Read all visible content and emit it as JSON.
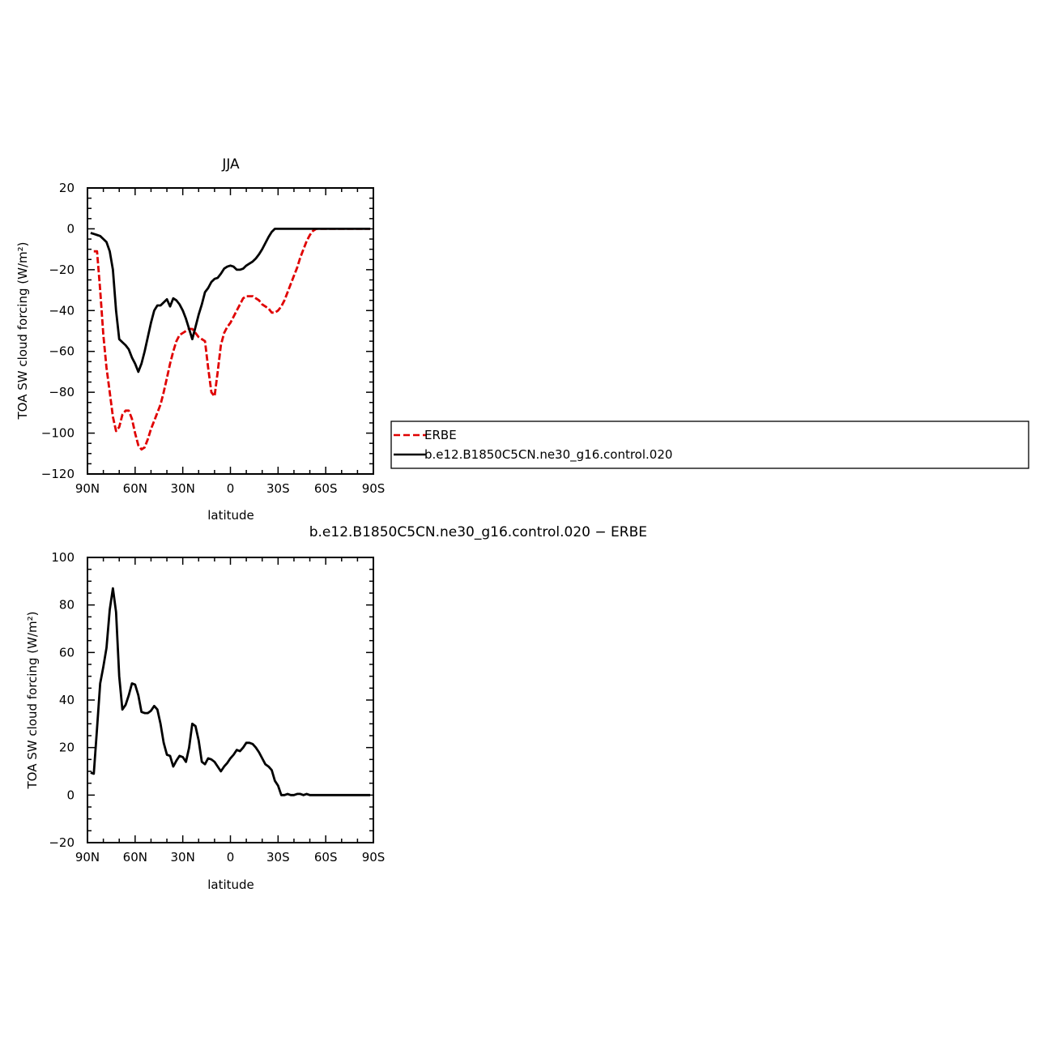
{
  "chart_data": [
    {
      "type": "line",
      "title": "JJA",
      "xlabel": "latitude",
      "ylabel": "TOA SW cloud forcing (W/m²)",
      "x_tick_labels": [
        "90N",
        "60N",
        "30N",
        "0",
        "30S",
        "60S",
        "90S"
      ],
      "x_ticks": [
        90,
        60,
        30,
        0,
        -30,
        -60,
        -90
      ],
      "xlim": [
        90,
        -90
      ],
      "ylim": [
        -120,
        20
      ],
      "y_ticks": [
        -120,
        -100,
        -80,
        -60,
        -40,
        -20,
        0,
        20
      ],
      "legend": {
        "placement": "right",
        "entries": [
          "ERBE",
          "b.e12.B1850C5CN.ne30_g16.control.020"
        ]
      },
      "series": [
        {
          "name": "ERBE",
          "color": "#e00000",
          "dash": true,
          "x": [
            86,
            84,
            82,
            80,
            78,
            76,
            74,
            72,
            70,
            68,
            66,
            64,
            62,
            60,
            58,
            56,
            54,
            52,
            50,
            48,
            46,
            44,
            42,
            40,
            38,
            36,
            34,
            32,
            30,
            28,
            26,
            24,
            22,
            20,
            18,
            16,
            14,
            12,
            10,
            8,
            6,
            4,
            2,
            0,
            -2,
            -4,
            -6,
            -8,
            -10,
            -12,
            -14,
            -16,
            -18,
            -20,
            -22,
            -24,
            -26,
            -28,
            -30,
            -32,
            -34,
            -36,
            -38,
            -40,
            -42,
            -44,
            -46,
            -48,
            -50,
            -52,
            -54,
            -56,
            -58,
            -60,
            -62,
            -64,
            -66,
            -68,
            -70,
            -72,
            -74,
            -76,
            -78,
            -80,
            -82,
            -84,
            -86,
            -88
          ],
          "y": [
            -11,
            -11,
            -30,
            -52,
            -68,
            -80,
            -92,
            -99,
            -97,
            -91,
            -89,
            -89,
            -93,
            -100,
            -106,
            -108,
            -107,
            -103,
            -98,
            -94,
            -90,
            -86,
            -80,
            -73,
            -66,
            -60,
            -55,
            -52,
            -51,
            -50,
            -49,
            -49,
            -51,
            -53,
            -54,
            -55,
            -68,
            -80,
            -82,
            -70,
            -57,
            -51,
            -48,
            -46,
            -43,
            -40,
            -37,
            -34,
            -33,
            -33,
            -33,
            -34,
            -35,
            -37,
            -38,
            -39,
            -41,
            -41,
            -40,
            -38,
            -35,
            -31,
            -27,
            -23,
            -19,
            -14,
            -10,
            -6,
            -3,
            -1,
            0,
            0,
            0,
            0,
            0,
            0,
            0,
            0,
            0,
            0,
            0,
            0,
            0,
            0,
            0,
            0,
            0,
            0
          ]
        },
        {
          "name": "b.e12.B1850C5CN.ne30_g16.control.020",
          "color": "#000000",
          "dash": false,
          "x": [
            88,
            86,
            84,
            82,
            80,
            78,
            76,
            74,
            72,
            70,
            68,
            66,
            64,
            62,
            60,
            58,
            56,
            54,
            52,
            50,
            48,
            46,
            44,
            42,
            40,
            38,
            36,
            34,
            32,
            30,
            28,
            26,
            24,
            22,
            20,
            18,
            16,
            14,
            12,
            10,
            8,
            6,
            4,
            2,
            0,
            -2,
            -4,
            -6,
            -8,
            -10,
            -12,
            -14,
            -16,
            -18,
            -20,
            -22,
            -24,
            -26,
            -28,
            -30,
            -32,
            -34,
            -36,
            -38,
            -40,
            -42,
            -44,
            -46,
            -48,
            -50,
            -52,
            -54,
            -56,
            -58,
            -60,
            -62,
            -64,
            -66,
            -68,
            -70,
            -72,
            -74,
            -76,
            -78,
            -80,
            -82,
            -84,
            -86,
            -88
          ],
          "y": [
            -2,
            -2.5,
            -3,
            -3.5,
            -5,
            -6.5,
            -11,
            -20,
            -40,
            -54,
            -55.5,
            -57,
            -59,
            -63,
            -66,
            -70,
            -66,
            -60,
            -53,
            -46,
            -40,
            -37.5,
            -37.5,
            -36,
            -34.5,
            -38,
            -34,
            -35,
            -37,
            -40,
            -44,
            -49,
            -54,
            -48,
            -42,
            -37,
            -31,
            -29,
            -26,
            -24.5,
            -24,
            -22,
            -19.5,
            -18.5,
            -18,
            -18.5,
            -20,
            -20,
            -19.5,
            -18,
            -17,
            -16,
            -14.5,
            -12.5,
            -10,
            -7,
            -4,
            -1.5,
            0,
            0,
            0,
            0,
            0,
            0,
            0,
            0,
            0,
            0,
            0,
            0,
            0,
            0,
            0,
            0,
            0,
            0,
            0,
            0,
            0,
            0,
            0,
            0,
            0,
            0,
            0,
            0,
            0,
            0,
            0
          ]
        }
      ]
    },
    {
      "type": "line",
      "title": "b.e12.B1850C5CN.ne30_g16.control.020 − ERBE",
      "xlabel": "latitude",
      "ylabel": "TOA SW cloud forcing (W/m²)",
      "x_tick_labels": [
        "90N",
        "60N",
        "30N",
        "0",
        "30S",
        "60S",
        "90S"
      ],
      "x_ticks": [
        90,
        60,
        30,
        0,
        -30,
        -60,
        -90
      ],
      "xlim": [
        90,
        -90
      ],
      "ylim": [
        -20,
        100
      ],
      "y_ticks": [
        -20,
        0,
        20,
        40,
        60,
        80,
        100
      ],
      "series": [
        {
          "color": "#000000",
          "dash": false,
          "x": [
            88,
            86,
            84,
            82,
            80,
            78,
            76,
            74,
            72,
            70,
            68,
            66,
            64,
            62,
            60,
            58,
            56,
            54,
            52,
            50,
            48,
            46,
            44,
            42,
            40,
            38,
            36,
            34,
            32,
            30,
            28,
            26,
            24,
            22,
            20,
            18,
            16,
            14,
            12,
            10,
            8,
            6,
            4,
            2,
            0,
            -2,
            -4,
            -6,
            -8,
            -10,
            -12,
            -14,
            -16,
            -18,
            -20,
            -22,
            -24,
            -26,
            -28,
            -30,
            -32,
            -34,
            -36,
            -38,
            -40,
            -42,
            -44,
            -46,
            -48,
            -50,
            -52,
            -54,
            -56,
            -58,
            -60,
            -62,
            -64,
            -66,
            -68,
            -70,
            -72,
            -74,
            -76,
            -78,
            -80,
            -82,
            -84,
            -86,
            -88
          ],
          "y": [
            9.5,
            9,
            28,
            47,
            54,
            62,
            78,
            87,
            77,
            50,
            36,
            38,
            42,
            47,
            46.5,
            42,
            35,
            34.5,
            34.5,
            35.5,
            37.5,
            36,
            30,
            22,
            17,
            16.5,
            12,
            14.5,
            16.5,
            16,
            14,
            20,
            30,
            29,
            23,
            14,
            13,
            15.5,
            15,
            14,
            12,
            10,
            12,
            13.5,
            15.5,
            17,
            19,
            18.5,
            20,
            22,
            22,
            21.5,
            20,
            18,
            15.5,
            13,
            12,
            10.5,
            6,
            4,
            0,
            0,
            0.5,
            0,
            0,
            0.5,
            0.5,
            0,
            0.5,
            0,
            0,
            0,
            0,
            0,
            0,
            0,
            0,
            0,
            0,
            0,
            0,
            0,
            0,
            0,
            0,
            0,
            0,
            0,
            0
          ]
        }
      ]
    }
  ]
}
